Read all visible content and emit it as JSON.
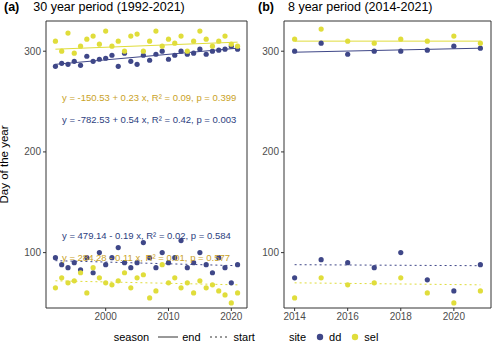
{
  "legend": "bottom",
  "legend_groups": [
    {
      "title": "season",
      "items": [
        {
          "name": "end",
          "line_style": "solid"
        },
        {
          "name": "start",
          "line_style": "dotted"
        }
      ]
    },
    {
      "title": "site",
      "items": [
        {
          "name": "dd",
          "color": "#3f4788",
          "marker": "circle"
        },
        {
          "name": "sel",
          "color": "#e0dd3b",
          "marker": "circle"
        }
      ]
    }
  ],
  "chart_data": [
    {
      "type": "scatter",
      "panel_label": "(a)",
      "title": "30 year period (1992-2021)",
      "y_label": "Day of the year",
      "grid": false,
      "xlim": [
        1990.5,
        2022.5
      ],
      "xticks": [
        2000,
        2010,
        2020
      ],
      "ylim": [
        45,
        330
      ],
      "yticks": [
        100,
        200,
        300
      ],
      "x": [
        1992,
        1993,
        1994,
        1995,
        1996,
        1997,
        1998,
        1999,
        2000,
        2001,
        2002,
        2003,
        2004,
        2005,
        2006,
        2007,
        2008,
        2009,
        2010,
        2011,
        2012,
        2013,
        2014,
        2015,
        2016,
        2017,
        2018,
        2019,
        2020,
        2021
      ],
      "series": [
        {
          "name": "dd",
          "color": "#3f4788",
          "values": [
            285,
            288,
            287,
            290,
            286,
            295,
            290,
            292,
            293,
            296,
            285,
            298,
            290,
            287,
            296,
            291,
            297,
            300,
            292,
            296,
            300,
            297,
            298,
            302,
            297,
            300,
            301,
            302,
            305,
            302
          ]
        },
        {
          "name": "sel",
          "color": "#e0dd3b",
          "values": [
            310,
            300,
            318,
            298,
            305,
            312,
            315,
            307,
            320,
            305,
            310,
            300,
            315,
            317,
            300,
            310,
            320,
            305,
            312,
            308,
            315,
            300,
            310,
            320,
            312,
            305,
            310,
            315,
            307,
            305
          ]
        },
        {
          "name": "dd",
          "color": "#3f4788",
          "values": [
            95,
            88,
            85,
            90,
            83,
            95,
            80,
            100,
            88,
            95,
            105,
            90,
            85,
            90,
            110,
            95,
            85,
            100,
            90,
            95,
            112,
            85,
            90,
            100,
            88,
            80,
            95,
            85,
            70,
            88
          ]
        },
        {
          "name": "sel",
          "color": "#e0dd3b",
          "values": [
            65,
            75,
            70,
            72,
            80,
            60,
            85,
            75,
            70,
            68,
            72,
            80,
            65,
            75,
            78,
            55,
            62,
            88,
            70,
            75,
            65,
            70,
            60,
            72,
            65,
            68,
            62,
            58,
            50,
            60
          ]
        }
      ],
      "trend_lines": [
        {
          "name": "dd",
          "season": "end",
          "color": "#3f4788",
          "x": [
            1992,
            2021
          ],
          "values": [
            287,
            303
          ]
        },
        {
          "name": "sel",
          "season": "end",
          "color": "#e0dd3b",
          "x": [
            1992,
            2021
          ],
          "values": [
            302,
            309
          ]
        },
        {
          "name": "dd",
          "season": "start",
          "color": "#3f4788",
          "x": [
            1992,
            2021
          ],
          "values": [
            92,
            87
          ]
        },
        {
          "name": "sel",
          "season": "start",
          "color": "#e0dd3b",
          "x": [
            1992,
            2021
          ],
          "values": [
            72,
            68
          ]
        }
      ],
      "annotations": [
        {
          "text": "y = -150.53 + 0.23 x, R² = 0.09, p = 0.399",
          "color": "#c9a227"
        },
        {
          "text": "y = -782.53 + 0.54 x, R² = 0.42, p = 0.003",
          "color": "#2c3e7e"
        },
        {
          "text": "y = 479.14 - 0.19 x, R² = 0.02, p = 0.584",
          "color": "#2c3e7e"
        },
        {
          "text": "y = 284.28 - 0.11 x, R² = 0.01, p = 0.577",
          "color": "#c9a227"
        }
      ]
    },
    {
      "type": "scatter",
      "panel_label": "(b)",
      "title": "8 year period (2014-2021)",
      "grid": false,
      "xlim": [
        2013.6,
        2021.4
      ],
      "xticks": [
        2014,
        2016,
        2018,
        2020
      ],
      "ylim": [
        45,
        330
      ],
      "yticks": [
        100,
        200,
        300
      ],
      "x": [
        2014,
        2015,
        2016,
        2017,
        2018,
        2019,
        2020,
        2021
      ],
      "series": [
        {
          "name": "dd",
          "color": "#3f4788",
          "values": [
            300,
            308,
            297,
            300,
            300,
            301,
            305,
            303
          ]
        },
        {
          "name": "sel",
          "color": "#e0dd3b",
          "values": [
            312,
            322,
            310,
            308,
            312,
            310,
            315,
            308
          ]
        },
        {
          "name": "dd",
          "color": "#3f4788",
          "values": [
            75,
            93,
            90,
            85,
            100,
            73,
            62,
            88
          ]
        },
        {
          "name": "sel",
          "color": "#e0dd3b",
          "values": [
            55,
            75,
            68,
            70,
            75,
            60,
            50,
            62
          ]
        }
      ],
      "trend_lines": [
        {
          "name": "dd",
          "season": "end",
          "color": "#3f4788",
          "x": [
            2014,
            2021
          ],
          "values": [
            299,
            303
          ]
        },
        {
          "name": "sel",
          "season": "end",
          "color": "#e0dd3b",
          "x": [
            2014,
            2021
          ],
          "values": [
            310,
            310
          ]
        },
        {
          "name": "dd",
          "season": "start",
          "color": "#3f4788",
          "x": [
            2014,
            2021
          ],
          "values": [
            88,
            87
          ]
        },
        {
          "name": "sel",
          "season": "start",
          "color": "#e0dd3b",
          "x": [
            2014,
            2021
          ],
          "values": [
            70,
            68
          ]
        }
      ]
    }
  ]
}
